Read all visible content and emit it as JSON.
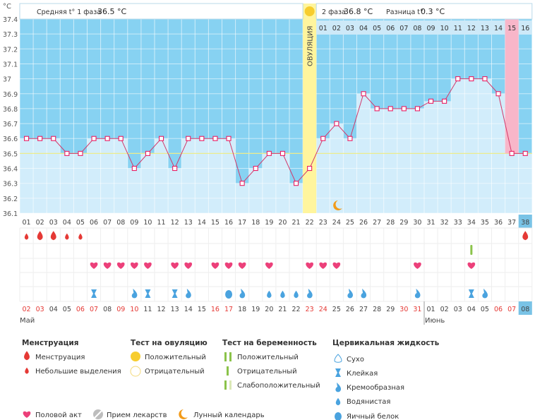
{
  "chart_data": {
    "type": "line",
    "y_unit": "°C",
    "ylim": [
      36.1,
      37.4
    ],
    "y_ticks": [
      "36.1",
      "36.2",
      "36.3",
      "36.4",
      "36.5",
      "36.6",
      "36.7",
      "36.8",
      "36.9",
      "37",
      "37.1",
      "37.2",
      "37.3",
      "37.4"
    ],
    "cycle_days": [
      "01",
      "02",
      "03",
      "04",
      "05",
      "06",
      "07",
      "08",
      "09",
      "10",
      "11",
      "12",
      "13",
      "14",
      "15",
      "16",
      "17",
      "18",
      "19",
      "20",
      "21",
      "22",
      "23",
      "24",
      "25",
      "26",
      "27",
      "28",
      "29",
      "30",
      "31",
      "32",
      "33",
      "34",
      "35",
      "36",
      "37",
      "38"
    ],
    "series": [
      {
        "values": [
          36.6,
          36.6,
          36.6,
          36.5,
          36.5,
          36.6,
          36.6,
          36.6,
          36.4,
          36.5,
          36.6,
          36.4,
          36.6,
          36.6,
          36.6,
          36.6,
          36.3,
          36.4,
          36.5,
          36.5,
          36.3,
          36.4,
          36.6,
          36.7,
          36.6,
          36.9,
          36.8,
          36.8,
          36.8,
          36.8,
          36.85,
          36.85,
          37.0,
          37.0,
          37.0,
          36.9,
          36.5,
          36.5
        ]
      }
    ],
    "coverline": 36.5,
    "ovulation_day": "22",
    "ovulation_label": "ОВУЛЯЦИЯ",
    "highlight_day": "37",
    "phase2_day_numbers": [
      "01",
      "02",
      "03",
      "04",
      "05",
      "06",
      "07",
      "08",
      "09",
      "10",
      "11",
      "12",
      "13",
      "14",
      "15",
      "16"
    ],
    "phase2_highlight": "15",
    "moon_day": "24",
    "dates": [
      "02",
      "03",
      "04",
      "05",
      "06",
      "07",
      "08",
      "09",
      "10",
      "11",
      "12",
      "13",
      "14",
      "15",
      "16",
      "17",
      "18",
      "19",
      "20",
      "21",
      "22",
      "23",
      "24",
      "25",
      "26",
      "27",
      "28",
      "29",
      "30",
      "31",
      "01",
      "02",
      "03",
      "04",
      "05",
      "06",
      "07",
      "08"
    ],
    "red_dates": [
      "02",
      "03",
      "09",
      "10",
      "16",
      "17",
      "23",
      "24",
      "30",
      "31",
      "06",
      "07"
    ],
    "month_start": "Май",
    "month_second": "Июнь",
    "phase1": {
      "label": "Средняя t° 1 фаза",
      "value": "36.5 °C"
    },
    "phase2": {
      "label": "2 фаза",
      "value": "36.8 °C"
    },
    "diff": {
      "label": "Разница t°",
      "value": "0.3 °C"
    },
    "menstruation_rows": [
      {
        "day": "01",
        "kind": "small"
      },
      {
        "day": "02",
        "kind": "big"
      },
      {
        "day": "03",
        "kind": "big"
      },
      {
        "day": "04",
        "kind": "small"
      },
      {
        "day": "05",
        "kind": "small"
      },
      {
        "day": "38",
        "kind": "big"
      }
    ],
    "intercourse_days": [
      "06",
      "07",
      "08",
      "09",
      "10",
      "12",
      "13",
      "15",
      "16",
      "17",
      "19",
      "22",
      "23",
      "24",
      "30",
      "34"
    ],
    "pregnancy_test_days": [
      "34"
    ],
    "cervical_fluid": [
      {
        "day": "06",
        "kind": "sticky"
      },
      {
        "day": "09",
        "kind": "creamy"
      },
      {
        "day": "10",
        "kind": "sticky"
      },
      {
        "day": "12",
        "kind": "sticky"
      },
      {
        "day": "13",
        "kind": "creamy"
      },
      {
        "day": "16",
        "kind": "eggwhite"
      },
      {
        "day": "17",
        "kind": "creamy"
      },
      {
        "day": "19",
        "kind": "watery"
      },
      {
        "day": "20",
        "kind": "watery"
      },
      {
        "day": "21",
        "kind": "watery"
      },
      {
        "day": "22",
        "kind": "creamy"
      },
      {
        "day": "25",
        "kind": "creamy"
      },
      {
        "day": "26",
        "kind": "creamy"
      },
      {
        "day": "30",
        "kind": "creamy"
      },
      {
        "day": "34",
        "kind": "sticky"
      },
      {
        "day": "35",
        "kind": "creamy"
      }
    ]
  },
  "legend": {
    "menstruation": {
      "title": "Менструация",
      "items": [
        "Менструация",
        "Небольшие выделения"
      ]
    },
    "ovulation_test": {
      "title": "Тест на овуляцию",
      "items": [
        "Положительный",
        "Отрицательный"
      ]
    },
    "pregnancy_test": {
      "title": "Тест на беременность",
      "items": [
        "Положительный",
        "Отрицательный",
        "Слабоположительный"
      ]
    },
    "cervical": {
      "title": "Цервикальная жидкость",
      "items": [
        "Сухо",
        "Клейкая",
        "Кремообразная",
        "Водянистая",
        "Яичный белок"
      ]
    },
    "bottom": [
      "Половой акт",
      "Прием лекарств",
      "Лунный календарь"
    ]
  },
  "colors": {
    "sky": "#87d2f2",
    "fill": "#d2edfb",
    "line": "#d2386a",
    "marker": "#e91e63",
    "ovulation": "#fff59d",
    "highlight": "#f8b6c9",
    "drop": "#e53935",
    "heart": "#ec407a",
    "fluid": "#4aa3df",
    "test": "#8bc34a",
    "red_text": "#e53935",
    "moon": "#f29b1a",
    "sun": "#f7cd2e"
  }
}
